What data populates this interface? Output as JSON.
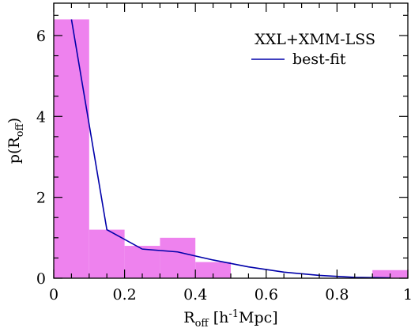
{
  "chart_data": {
    "type": "bar",
    "title": "",
    "xlabel": {
      "main": "R",
      "sub": "off",
      "rest": " [h",
      "sup": "-1",
      "tail": "Mpc]"
    },
    "ylabel": {
      "main": "p(R",
      "sub": "off",
      "tail": ")"
    },
    "xlim": [
      0,
      1
    ],
    "ylim": [
      0,
      6.8
    ],
    "xticks": [
      0,
      0.2,
      0.4,
      0.6,
      0.8,
      1
    ],
    "xtick_labels": [
      "0",
      "0.2",
      "0.4",
      "0.6",
      "0.8",
      "1"
    ],
    "yticks": [
      0,
      2,
      4,
      6
    ],
    "ytick_labels": [
      "0",
      "2",
      "4",
      "6"
    ],
    "grid": false,
    "legend": {
      "placement": "top-right",
      "entries": [
        "XXL+XMM-LSS",
        "best-fit"
      ]
    },
    "histogram": {
      "name": "XXL+XMM-LSS",
      "color": "#ee82ee",
      "bin_edges": [
        0,
        0.1,
        0.2,
        0.3,
        0.4,
        0.5,
        0.6,
        0.7,
        0.8,
        0.9,
        1.0
      ],
      "values": [
        6.4,
        1.2,
        0.8,
        1.0,
        0.4,
        0.0,
        0.0,
        0.0,
        0.0,
        0.2
      ]
    },
    "series": [
      {
        "name": "best-fit",
        "color": "#0000aa",
        "x": [
          0.05,
          0.15,
          0.25,
          0.35,
          0.45,
          0.55,
          0.65,
          0.75,
          0.85,
          0.95
        ],
        "y": [
          6.4,
          1.2,
          0.72,
          0.65,
          0.45,
          0.28,
          0.15,
          0.07,
          0.02,
          0.01
        ]
      }
    ]
  }
}
